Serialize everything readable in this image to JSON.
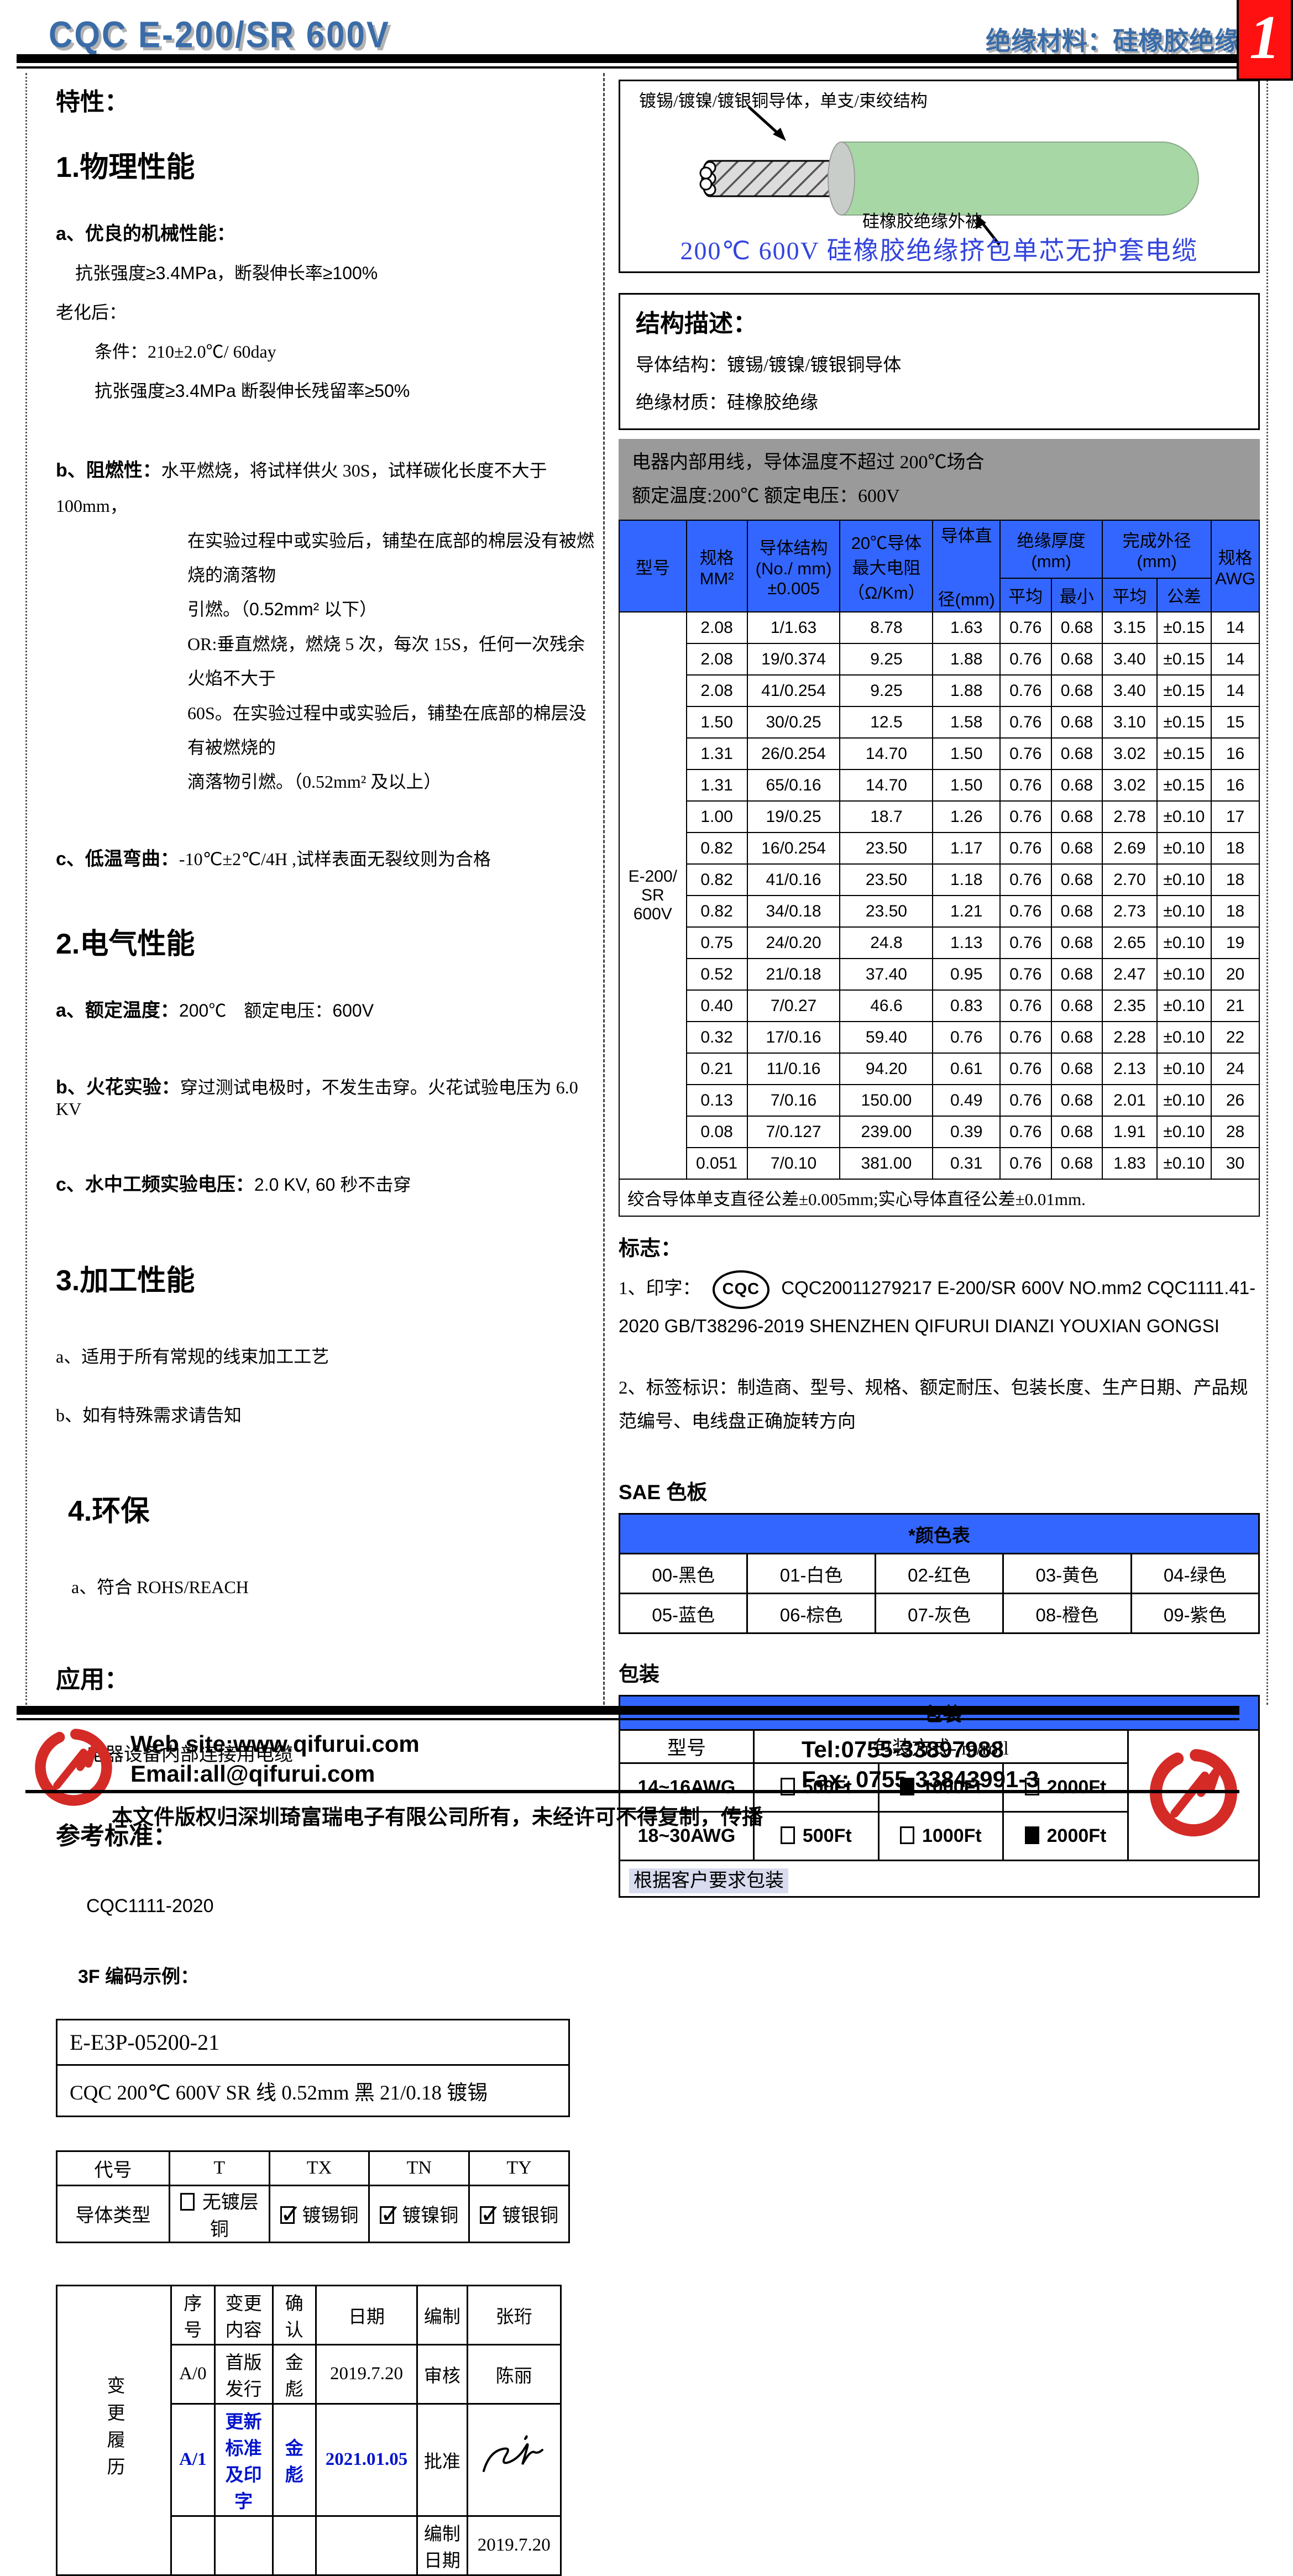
{
  "colors": {
    "accent_blue": "#3366FF",
    "title_blue": "#3A6CA8",
    "caption_blue": "#3344DD",
    "gray_box": "#9A9A9A",
    "logo_red": "#D42B27",
    "page_red": "#FF1111",
    "insulation_green": "#A8D7A6",
    "note_highlight": "#D8DCEE"
  },
  "header": {
    "title": "CQC E-200/SR 600V",
    "subtitle": "绝缘材料：硅橡胶绝缘"
  },
  "left": {
    "traits_title": "特性：",
    "s1_title": "1.物理性能",
    "s1a_label": "a、优良的机械性能：",
    "s1a_line": "抗张强度≥3.4MPa，断裂伸长率≥100%",
    "aging_label": "老化后：",
    "aging_cond": "条件：210±2.0℃/ 60day",
    "aging_line": "抗张强度≥3.4MPa 断裂伸长残留率≥50%",
    "s1b_label": "b、阻燃性：",
    "s1b_line1": "水平燃烧，将试样供火 30S，试样碳化长度不大于 100mm，",
    "s1b_line2": "在实验过程中或实验后，铺垫在底部的棉层没有被燃烧的滴落物",
    "s1b_line3": "引燃。（0.52mm² 以下）",
    "s1b_line4": "OR:垂直燃烧，燃烧 5 次，每次 15S，任何一次残余火焰不大于",
    "s1b_line5": "60S。在实验过程中或实验后，铺垫在底部的棉层没有被燃烧的",
    "s1b_line6": "滴落物引燃。（0.52mm² 及以上）",
    "s1c_label": "c、低温弯曲：",
    "s1c_line": "-10℃±2℃/4H ,试样表面无裂纹则为合格",
    "s2_title": "2.电气性能",
    "s2a_label": "a、额定温度：",
    "s2a_line": "200℃　额定电压：600V",
    "s2b_label": "b、火花实验：",
    "s2b_line": "穿过测试电极时，不发生击穿。火花试验电压为 6.0 KV",
    "s2c_label": "c、水中工频实验电压：",
    "s2c_line": "2.0 KV, 60 秒不击穿",
    "s3_title": "3.加工性能",
    "s3a_line": "a、适用于所有常规的线束加工工艺",
    "s3b_line": "b、如有特殊需求请告知",
    "s4_title": "4.环保",
    "s4a_line": "a、符合 ROHS/REACH",
    "app_title": "应用：",
    "app_line": "电器设备内部连接用电缆",
    "ref_title": "参考标准：",
    "ref_line": "CQC1111-2020",
    "code_title": "3F 编码示例：",
    "code_line1": "E-E3P-05200-21",
    "code_line2": "CQC 200℃  600V SR 线  0.52mm  黑 21/0.18 镀锡",
    "conductor_type": {
      "headers": [
        "代号",
        "T",
        "TX",
        "TN",
        "TY"
      ],
      "row_label": "导体类型",
      "cells": [
        {
          "checked": false,
          "label": "无镀层铜"
        },
        {
          "checked": true,
          "label": "镀锡铜"
        },
        {
          "checked": true,
          "label": "镀镍铜"
        },
        {
          "checked": true,
          "label": "镀银铜"
        }
      ]
    },
    "revision": {
      "side_label": "变更履历",
      "col_seq": "序号",
      "col_content": "变更内容",
      "col_confirm": "确认",
      "col_date": "日期",
      "r1_label": "编制",
      "r1_value": "张珩",
      "a0_seq": "A/0",
      "a0_content": "首版发行",
      "a0_confirm": "金彪",
      "a0_date": "2019.7.20",
      "r2_label": "审核",
      "r2_value": "陈丽",
      "a1_seq": "A/1",
      "a1_content": "更新标准及印字",
      "a1_confirm": "金彪",
      "a1_date": "2021.01.05",
      "r3_label": "批准",
      "r4_label": "编制日期",
      "r4_value": "2019.7.20"
    }
  },
  "right": {
    "diagram": {
      "conductor_label": "镀锡/镀镍/镀银铜导体，单支/束绞结构",
      "insulation_label": "硅橡胶绝缘外被",
      "caption": "200℃  600V 硅橡胶绝缘挤包单芯无护套电缆"
    },
    "structure": {
      "title": "结构描述：",
      "line1": "导体结构：镀锡/镀镍/镀银铜导体",
      "line2": "绝缘材质：硅橡胶绝缘"
    },
    "usage": {
      "line1": "电器内部用线，导体温度不超过 200℃场合",
      "line2": "额定温度:200℃  额定电压：600V"
    },
    "spec_table": {
      "headers": {
        "model": "型号",
        "size": "规格\nMM²",
        "structure": "导体结构\n(No./ mm)\n±0.005",
        "resistance": "20℃导体\n最大电阻\n（Ω/Km）",
        "diameter_top": "导体直",
        "diameter_bottom": "径(mm)",
        "insulation": "绝缘厚度\n(mm)",
        "od": "完成外径\n(mm)",
        "avg1": "平均",
        "min": "最小",
        "avg2": "平均",
        "tol": "公差",
        "awg": "规格\nAWG"
      },
      "model": "E-200/\nSR\n600V",
      "rows": [
        [
          "2.08",
          "1/1.63",
          "8.78",
          "1.63",
          "0.76",
          "0.68",
          "3.15",
          "±0.15",
          "14"
        ],
        [
          "2.08",
          "19/0.374",
          "9.25",
          "1.88",
          "0.76",
          "0.68",
          "3.40",
          "±0.15",
          "14"
        ],
        [
          "2.08",
          "41/0.254",
          "9.25",
          "1.88",
          "0.76",
          "0.68",
          "3.40",
          "±0.15",
          "14"
        ],
        [
          "1.50",
          "30/0.25",
          "12.5",
          "1.58",
          "0.76",
          "0.68",
          "3.10",
          "±0.15",
          "15"
        ],
        [
          "1.31",
          "26/0.254",
          "14.70",
          "1.50",
          "0.76",
          "0.68",
          "3.02",
          "±0.15",
          "16"
        ],
        [
          "1.31",
          "65/0.16",
          "14.70",
          "1.50",
          "0.76",
          "0.68",
          "3.02",
          "±0.15",
          "16"
        ],
        [
          "1.00",
          "19/0.25",
          "18.7",
          "1.26",
          "0.76",
          "0.68",
          "2.78",
          "±0.10",
          "17"
        ],
        [
          "0.82",
          "16/0.254",
          "23.50",
          "1.17",
          "0.76",
          "0.68",
          "2.69",
          "±0.10",
          "18"
        ],
        [
          "0.82",
          "41/0.16",
          "23.50",
          "1.18",
          "0.76",
          "0.68",
          "2.70",
          "±0.10",
          "18"
        ],
        [
          "0.82",
          "34/0.18",
          "23.50",
          "1.21",
          "0.76",
          "0.68",
          "2.73",
          "±0.10",
          "18"
        ],
        [
          "0.75",
          "24/0.20",
          "24.8",
          "1.13",
          "0.76",
          "0.68",
          "2.65",
          "±0.10",
          "19"
        ],
        [
          "0.52",
          "21/0.18",
          "37.40",
          "0.95",
          "0.76",
          "0.68",
          "2.47",
          "±0.10",
          "20"
        ],
        [
          "0.40",
          "7/0.27",
          "46.6",
          "0.83",
          "0.76",
          "0.68",
          "2.35",
          "±0.10",
          "21"
        ],
        [
          "0.32",
          "17/0.16",
          "59.40",
          "0.76",
          "0.76",
          "0.68",
          "2.28",
          "±0.10",
          "22"
        ],
        [
          "0.21",
          "11/0.16",
          "94.20",
          "0.61",
          "0.76",
          "0.68",
          "2.13",
          "±0.10",
          "24"
        ],
        [
          "0.13",
          "7/0.16",
          "150.00",
          "0.49",
          "0.76",
          "0.68",
          "2.01",
          "±0.10",
          "26"
        ],
        [
          "0.08",
          "7/0.127",
          "239.00",
          "0.39",
          "0.76",
          "0.68",
          "1.91",
          "±0.10",
          "28"
        ],
        [
          "0.051",
          "7/0.10",
          "381.00",
          "0.31",
          "0.76",
          "0.68",
          "1.83",
          "±0.10",
          "30"
        ]
      ],
      "footnote": "绞合导体单支直径公差±0.005mm;实心导体直径公差±0.01mm."
    },
    "marks": {
      "title": "标志：",
      "item1_prefix": "1、印字：",
      "cqc_logo_text": "CQC",
      "item1_text": "CQC20011279217 E-200/SR 600V NO.mm2 CQC1111.41-2020 GB/T38296-2019 SHENZHEN QIFURUI DIANZI YOUXIAN GONGSI",
      "item2_text": "2、标签标识：制造商、型号、规格、额定耐压、包装长度、生产日期、产品规范编号、电线盘正确旋转方向"
    },
    "sae": {
      "heading": "SAE 色板",
      "table_title": "*颜色表",
      "rows": [
        [
          "00-黑色",
          "01-白色",
          "02-红色",
          "03-黄色",
          "04-绿色"
        ],
        [
          "05-蓝色",
          "06-棕色",
          "07-灰色",
          "08-橙色",
          "09-紫色"
        ]
      ]
    },
    "packaging": {
      "heading": "包装",
      "table_title": "*包装",
      "col_model": "型号",
      "col_method": "包装方式- m/roll",
      "rows": [
        {
          "model": "14~16AWG",
          "options": [
            {
              "checked": false,
              "label": "500Ft"
            },
            {
              "checked": true,
              "label": "1000Ft"
            },
            {
              "checked": false,
              "label": "2000Ft"
            }
          ]
        },
        {
          "model": "18~30AWG",
          "options": [
            {
              "checked": false,
              "label": "500Ft"
            },
            {
              "checked": false,
              "label": "1000Ft"
            },
            {
              "checked": true,
              "label": "2000Ft"
            }
          ]
        }
      ],
      "note": "根据客户要求包装"
    }
  },
  "footer": {
    "website": "Web site:www.qifurui.com",
    "email": "Email:all@qifurui.com",
    "tel": "Tel:0755-33897988",
    "fax": "Fax: 0755-33843991-3",
    "copyright": "本文件版权归深圳琦富瑞电子有限公司所有，未经许可不得复制，传播",
    "page_number": "1"
  }
}
